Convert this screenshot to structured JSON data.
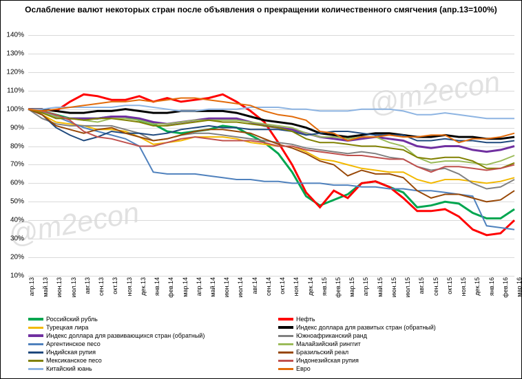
{
  "title": "Ослабление валют некоторых стран после объявления о прекращении количественного смягчения  (апр.13=100%)",
  "watermark": "@m2econ",
  "chart": {
    "type": "line",
    "background_color": "#ffffff",
    "grid_color": "#d9d9d9",
    "border_color": "#000000",
    "title_fontsize": 12,
    "label_fontsize": 10,
    "ylim": [
      10,
      140
    ],
    "ytick_step": 10,
    "ytick_suffix": "%",
    "x_labels": [
      "апр.13",
      "май.13",
      "июн.13",
      "июл.13",
      "авг.13",
      "сен.13",
      "окт.13",
      "ноя.13",
      "дек.13",
      "янв.14",
      "фев.14",
      "мар.14",
      "апр.14",
      "май.14",
      "июн.14",
      "июл.14",
      "авг.14",
      "сен.14",
      "окт.14",
      "ноя.14",
      "дек.14",
      "янв.15",
      "фев.15",
      "мар.15",
      "апр.15",
      "май.15",
      "июн.15",
      "июл.15",
      "авг.15",
      "сен.15",
      "окт.15",
      "ноя.15",
      "дек.15",
      "янв.16",
      "фев.16",
      "мар.16"
    ],
    "series": [
      {
        "name": "Российский рубль",
        "color": "#00a650",
        "width": 3,
        "values": [
          100,
          99,
          97,
          95,
          95,
          95,
          96,
          96,
          94,
          92,
          88,
          87,
          88,
          89,
          91,
          90,
          86,
          82,
          76,
          66,
          53,
          48,
          51,
          54,
          60,
          61,
          58,
          55,
          47,
          48,
          50,
          49,
          44,
          41,
          41,
          46
        ]
      },
      {
        "name": "Нефть",
        "color": "#ff0000",
        "width": 3,
        "values": [
          100,
          100,
          99,
          104,
          108,
          107,
          105,
          105,
          107,
          104,
          106,
          104,
          105,
          106,
          108,
          104,
          99,
          93,
          82,
          70,
          55,
          47,
          56,
          52,
          60,
          61,
          58,
          52,
          45,
          45,
          46,
          42,
          35,
          32,
          33,
          40
        ]
      },
      {
        "name": "Турецкая лира",
        "color": "#f2b800",
        "width": 2,
        "values": [
          100,
          97,
          93,
          92,
          91,
          89,
          89,
          88,
          85,
          81,
          82,
          83,
          85,
          85,
          85,
          84,
          82,
          81,
          80,
          80,
          77,
          73,
          72,
          70,
          68,
          67,
          66,
          66,
          62,
          60,
          62,
          62,
          61,
          60,
          61,
          63
        ]
      },
      {
        "name": "Индекс доллара для развитых стран (обратный)",
        "color": "#000000",
        "width": 3,
        "values": [
          100,
          100,
          99,
          98,
          98,
          99,
          99,
          100,
          99,
          98,
          98,
          99,
          99,
          99,
          99,
          98,
          96,
          94,
          93,
          92,
          90,
          87,
          86,
          85,
          86,
          87,
          87,
          86,
          85,
          85,
          86,
          85,
          85,
          84,
          84,
          85
        ]
      },
      {
        "name": "Индекс доллара для развивающихся стран (обратный)",
        "color": "#7030a0",
        "width": 3,
        "values": [
          100,
          99,
          96,
          95,
          95,
          95,
          96,
          96,
          95,
          93,
          92,
          93,
          94,
          95,
          95,
          95,
          93,
          91,
          90,
          89,
          87,
          85,
          84,
          83,
          84,
          85,
          84,
          83,
          80,
          79,
          80,
          80,
          78,
          77,
          78,
          80
        ]
      },
      {
        "name": "Южноафриканский ранд",
        "color": "#808080",
        "width": 2,
        "values": [
          100,
          95,
          92,
          91,
          91,
          91,
          91,
          89,
          87,
          83,
          84,
          86,
          87,
          87,
          86,
          85,
          84,
          83,
          82,
          81,
          79,
          78,
          77,
          76,
          77,
          76,
          74,
          73,
          69,
          67,
          68,
          65,
          60,
          57,
          58,
          62
        ]
      },
      {
        "name": "Аргентинское песо",
        "color": "#4f81bd",
        "width": 2,
        "values": [
          100,
          99,
          96,
          93,
          90,
          88,
          86,
          84,
          80,
          66,
          65,
          65,
          65,
          64,
          63,
          62,
          62,
          61,
          61,
          60,
          60,
          60,
          59,
          59,
          58,
          58,
          57,
          57,
          56,
          56,
          55,
          54,
          53,
          37,
          36,
          35
        ]
      },
      {
        "name": "Малайзийский ринггит",
        "color": "#9bbb59",
        "width": 2,
        "values": [
          100,
          98,
          96,
          95,
          94,
          93,
          95,
          95,
          94,
          92,
          92,
          93,
          94,
          94,
          94,
          94,
          93,
          92,
          91,
          90,
          87,
          85,
          85,
          84,
          85,
          85,
          82,
          80,
          74,
          71,
          72,
          72,
          71,
          70,
          72,
          75
        ]
      },
      {
        "name": "Индийская рупия",
        "color": "#1f497d",
        "width": 2,
        "values": [
          100,
          97,
          90,
          86,
          83,
          85,
          88,
          87,
          87,
          86,
          87,
          89,
          90,
          91,
          90,
          90,
          89,
          89,
          89,
          88,
          86,
          87,
          88,
          88,
          87,
          86,
          86,
          86,
          83,
          83,
          84,
          83,
          83,
          82,
          82,
          83
        ]
      },
      {
        "name": "Бразильский реал",
        "color": "#984807",
        "width": 2,
        "values": [
          100,
          97,
          91,
          89,
          87,
          89,
          90,
          87,
          85,
          83,
          84,
          86,
          88,
          89,
          89,
          88,
          87,
          84,
          81,
          79,
          76,
          72,
          70,
          64,
          67,
          65,
          65,
          63,
          56,
          52,
          54,
          54,
          52,
          50,
          51,
          56
        ]
      },
      {
        "name": "Мексиканское песо",
        "color": "#808000",
        "width": 2,
        "values": [
          100,
          98,
          95,
          95,
          94,
          95,
          95,
          94,
          93,
          91,
          91,
          92,
          93,
          94,
          93,
          93,
          92,
          91,
          90,
          88,
          84,
          82,
          82,
          81,
          80,
          80,
          79,
          78,
          74,
          73,
          74,
          74,
          72,
          68,
          68,
          71
        ]
      },
      {
        "name": "Индонезийская рупия",
        "color": "#c0504d",
        "width": 2,
        "values": [
          100,
          99,
          97,
          94,
          88,
          85,
          84,
          82,
          80,
          80,
          82,
          84,
          85,
          84,
          83,
          83,
          83,
          82,
          80,
          80,
          78,
          77,
          76,
          75,
          75,
          74,
          73,
          73,
          69,
          66,
          69,
          69,
          68,
          67,
          68,
          70
        ]
      },
      {
        "name": "Китайский юань",
        "color": "#8db4e2",
        "width": 2,
        "values": [
          100,
          100,
          101,
          101,
          101,
          101,
          101,
          102,
          102,
          101,
          100,
          99,
          99,
          100,
          100,
          100,
          101,
          101,
          101,
          100,
          100,
          99,
          99,
          99,
          100,
          100,
          100,
          99,
          97,
          97,
          98,
          97,
          96,
          95,
          95,
          95
        ]
      },
      {
        "name": "Евро",
        "color": "#e26b0a",
        "width": 2,
        "values": [
          100,
          99,
          100,
          101,
          102,
          103,
          104,
          104,
          105,
          104,
          105,
          106,
          106,
          105,
          104,
          103,
          102,
          99,
          97,
          96,
          94,
          88,
          87,
          83,
          85,
          85,
          86,
          85,
          85,
          86,
          86,
          82,
          84,
          84,
          85,
          87
        ]
      }
    ],
    "legend_order": [
      [
        "Российский рубль",
        "Нефть"
      ],
      [
        "Турецкая лира",
        "Индекс доллара для развитых стран (обратный)"
      ],
      [
        "Индекс доллара для развивающихся стран (обратный)",
        "Южноафриканский ранд"
      ],
      [
        "Аргентинское песо",
        "Малайзийский ринггит"
      ],
      [
        "Индийская рупия",
        "Бразильский реал"
      ],
      [
        "Мексиканское песо",
        "Индонезийская рупия"
      ],
      [
        "Китайский юань",
        "Евро"
      ]
    ]
  }
}
